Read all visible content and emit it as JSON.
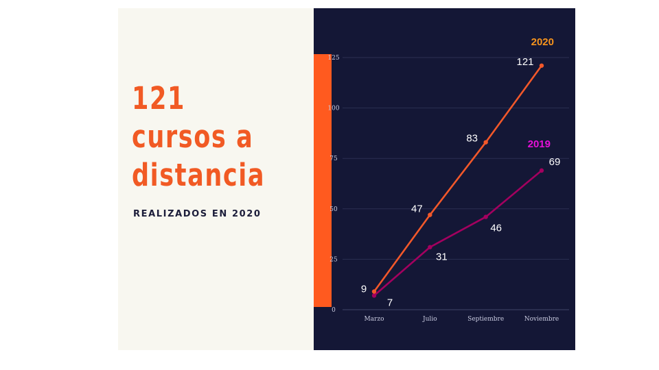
{
  "headline": {
    "lines": [
      "121",
      "cursos a",
      "distancia"
    ],
    "subtitle": "REALIZADOS EN 2020"
  },
  "colors": {
    "accent": "#f15a24",
    "panel_dark": "#141736",
    "panel_light": "#f8f7f0",
    "series_2020": "#f2582a",
    "series_2019": "#a3005f",
    "legend_2019": "#e610d9",
    "legend_2020": "#f7941d"
  },
  "chart_data": {
    "type": "line",
    "categories": [
      "Marzo",
      "Julio",
      "Septiembre",
      "Noviembre"
    ],
    "series": [
      {
        "name": "2020",
        "values": [
          9,
          47,
          83,
          121
        ]
      },
      {
        "name": "2019",
        "values": [
          7,
          31,
          46,
          69
        ]
      }
    ],
    "title": "",
    "xlabel": "",
    "ylabel": "",
    "ylim": [
      0,
      125
    ],
    "yticks": [
      0,
      25,
      50,
      75,
      100,
      125
    ],
    "grid": true,
    "legend_placement": "inline at line ends"
  }
}
